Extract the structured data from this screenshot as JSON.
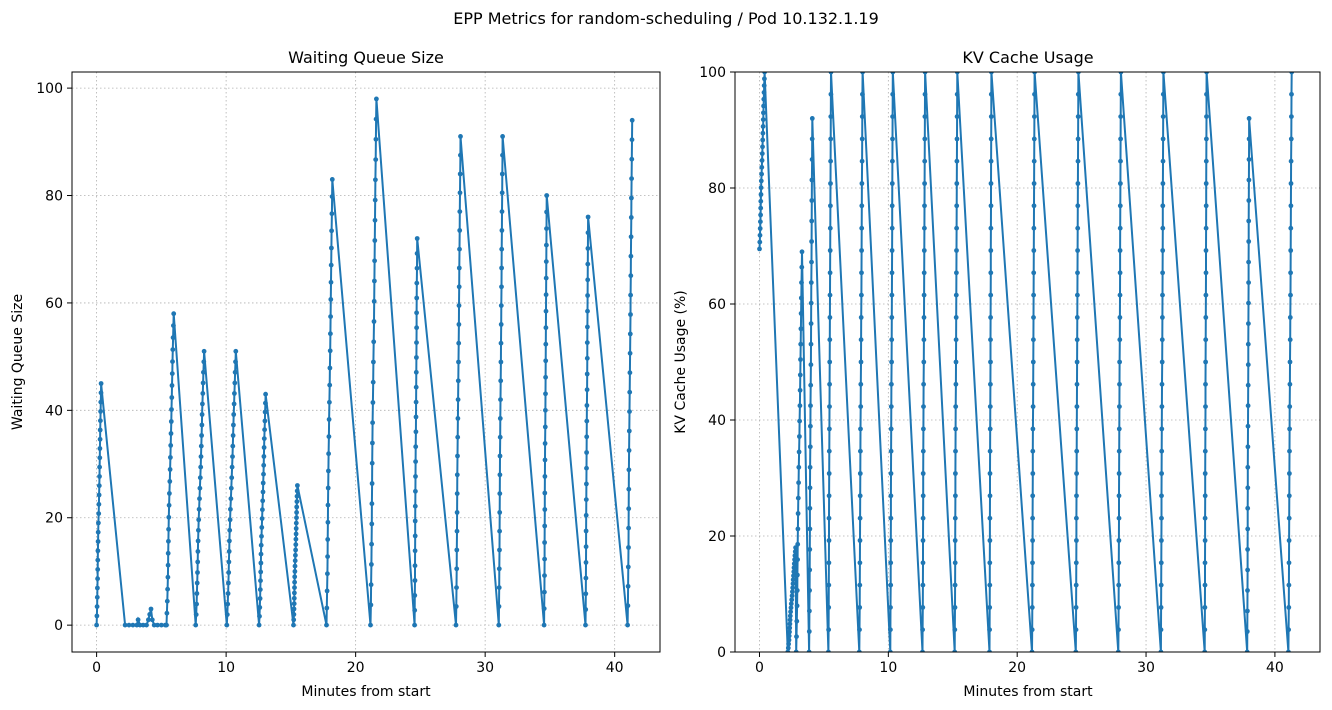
{
  "figure": {
    "suptitle": "EPP Metrics for random-scheduling / Pod 10.132.1.19"
  },
  "style": {
    "line_color": "#1f77b4",
    "grid_color": "#b0b0b0",
    "axis_color": "#000000",
    "background": "#ffffff"
  },
  "chart_data": [
    {
      "type": "line",
      "title": "Waiting Queue Size",
      "xlabel": "Minutes from start",
      "ylabel": "Waiting Queue Size",
      "xlim": [
        -1.9,
        43.5
      ],
      "ylim": [
        -5,
        103
      ],
      "xticks": [
        0,
        10,
        20,
        30,
        40
      ],
      "yticks": [
        0,
        20,
        40,
        60,
        80,
        100
      ],
      "grid": true,
      "legend": "none",
      "marker": "circle",
      "series": [
        {
          "cycles": [
            [
              0.0,
              0.35,
              0,
              45
            ],
            [
              2.2,
              5.3,
              0,
              0
            ],
            [
              5.4,
              5.95,
              0,
              58
            ],
            [
              7.65,
              8.3,
              0,
              51
            ],
            [
              10.05,
              10.75,
              0,
              51
            ],
            [
              12.55,
              13.05,
              0,
              43
            ],
            [
              15.2,
              15.5,
              0,
              26
            ],
            [
              17.75,
              18.2,
              0,
              83
            ],
            [
              21.15,
              21.6,
              0,
              98
            ],
            [
              24.55,
              24.75,
              0,
              72
            ],
            [
              27.75,
              28.1,
              0,
              91
            ],
            [
              31.05,
              31.35,
              0,
              91
            ],
            [
              34.55,
              34.75,
              0,
              80
            ],
            [
              37.75,
              37.95,
              0,
              76
            ],
            [
              41.0,
              41.35,
              0,
              94
            ]
          ],
          "idle_points": [
            [
              2.2,
              0
            ],
            [
              2.5,
              0
            ],
            [
              2.8,
              0
            ],
            [
              3.1,
              0
            ],
            [
              3.2,
              1
            ],
            [
              3.35,
              0
            ],
            [
              3.6,
              0
            ],
            [
              3.85,
              0
            ],
            [
              4.0,
              1
            ],
            [
              4.1,
              2
            ],
            [
              4.2,
              3
            ],
            [
              4.3,
              1
            ],
            [
              4.45,
              0
            ],
            [
              4.7,
              0
            ],
            [
              5.0,
              0
            ],
            [
              5.3,
              0
            ]
          ]
        }
      ]
    },
    {
      "type": "line",
      "title": "KV Cache Usage",
      "xlabel": "Minutes from start",
      "ylabel": "KV Cache Usage (%)",
      "xlim": [
        -1.9,
        43.5
      ],
      "ylim": [
        0,
        100
      ],
      "xticks": [
        0,
        10,
        20,
        30,
        40
      ],
      "yticks": [
        0,
        20,
        40,
        60,
        80,
        100
      ],
      "grid": true,
      "legend": "none",
      "marker": "circle",
      "series": [
        {
          "cycles": [
            [
              0.0,
              0.4,
              69.5,
              100
            ],
            [
              2.2,
              2.8,
              0,
              18
            ],
            [
              2.85,
              3.3,
              0,
              69
            ],
            [
              3.85,
              4.1,
              0,
              92
            ],
            [
              5.35,
              5.55,
              0,
              100
            ],
            [
              7.75,
              8.0,
              0,
              100
            ],
            [
              10.15,
              10.35,
              0,
              100
            ],
            [
              12.65,
              12.85,
              0,
              100
            ],
            [
              15.15,
              15.35,
              0,
              100
            ],
            [
              17.85,
              18.0,
              0,
              100
            ],
            [
              21.15,
              21.35,
              0,
              100
            ],
            [
              24.55,
              24.75,
              0,
              100
            ],
            [
              27.85,
              28.05,
              0,
              100
            ],
            [
              31.15,
              31.35,
              0,
              100
            ],
            [
              34.55,
              34.7,
              0,
              100
            ],
            [
              37.85,
              38.0,
              0,
              92
            ],
            [
              41.05,
              41.3,
              0,
              100
            ]
          ],
          "idle_points": []
        }
      ]
    }
  ]
}
